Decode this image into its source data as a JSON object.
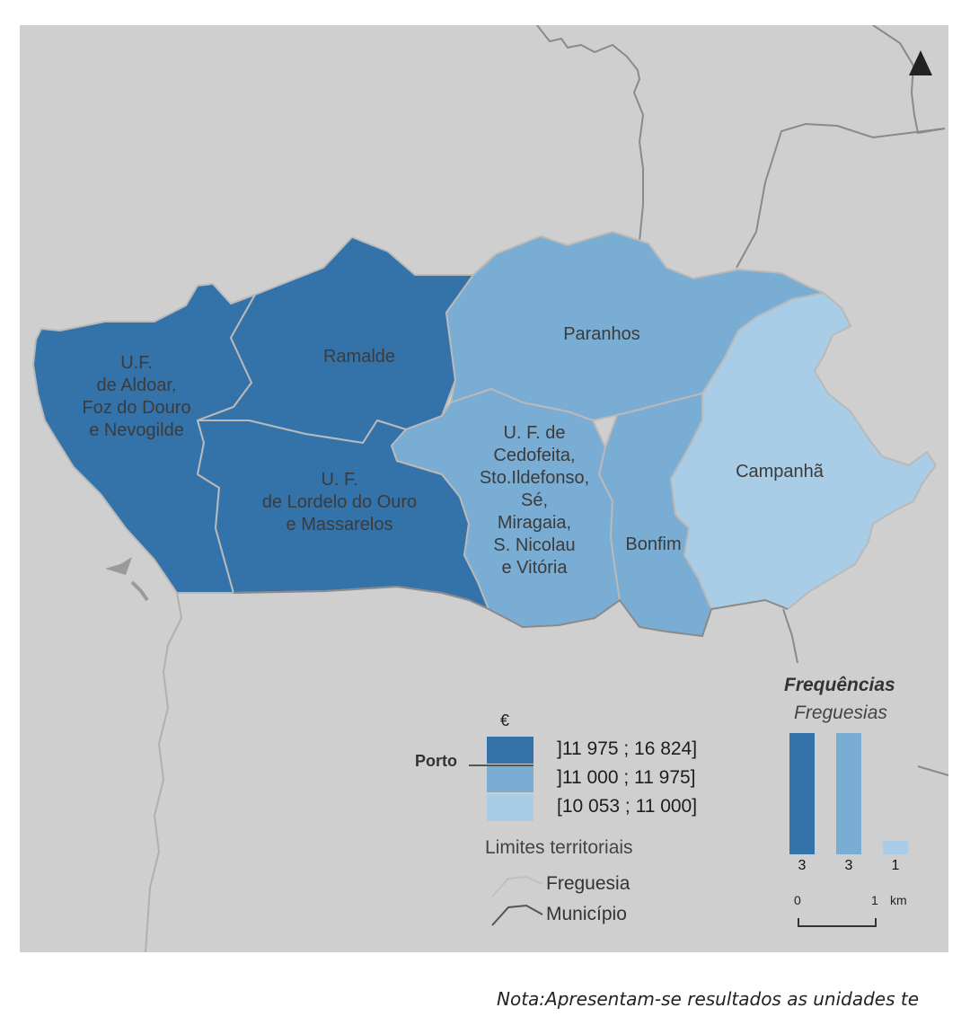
{
  "map": {
    "city_label": "Porto",
    "colors": {
      "background": "#cfcfcf",
      "class_high": "#3473aa",
      "class_mid": "#7aadd3",
      "class_low": "#a9cde6",
      "freguesia_border": "#b9b9b9",
      "municipio_border": "#8a8a8a"
    },
    "regions": [
      {
        "name": "U.F.\nde Aldoar,\nFoz do Douro\ne Nevogilde",
        "class": "high"
      },
      {
        "name": "Ramalde",
        "class": "high"
      },
      {
        "name": "U. F.\nde Lordelo do Ouro\ne Massarelos",
        "class": "high"
      },
      {
        "name": "Paranhos",
        "class": "mid"
      },
      {
        "name": "U. F. de\nCedofeita,\nSto.Ildefonso,\nSé,\nMiragaia,\nS. Nicolau\ne Vitória",
        "class": "mid"
      },
      {
        "name": "Bonfim",
        "class": "mid"
      },
      {
        "name": "Campanhã",
        "class": "low"
      }
    ]
  },
  "legend": {
    "currency_symbol": "€",
    "classes": [
      {
        "range": "]11 975 ; 16 824]",
        "color": "#3473aa"
      },
      {
        "range": "]11 000 ; 11 975]",
        "color": "#7aadd3"
      },
      {
        "range": "[10 053 ; 11 000]",
        "color": "#a9cde6"
      }
    ],
    "limits_title": "Limites territoriais",
    "freguesia_label": "Freguesia",
    "municipio_label": "Município"
  },
  "frequencies": {
    "title": "Frequências",
    "subtitle": "Freguesias",
    "counts": [
      3,
      3,
      1
    ]
  },
  "scale": {
    "start": "0",
    "end": "1",
    "unit": "km"
  },
  "north_arrow": "north-arrow-icon",
  "note": "Nota:Apresentam-se resultados as unidades te"
}
